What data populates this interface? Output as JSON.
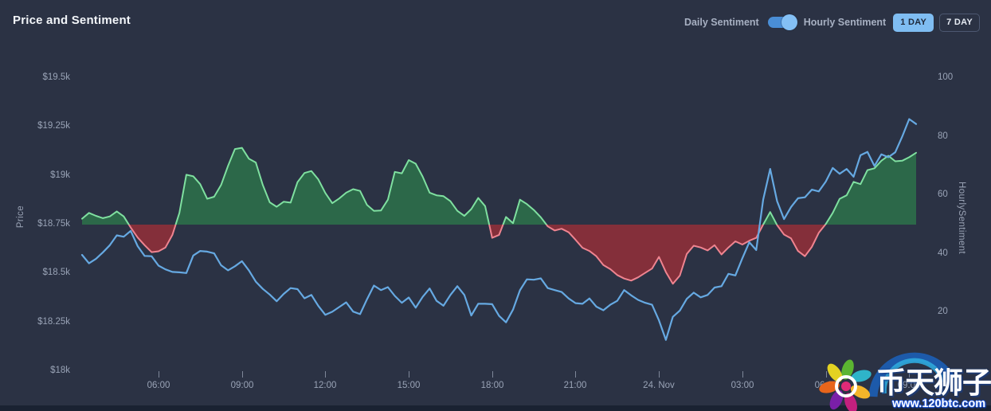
{
  "header": {
    "title": "Price and Sentiment"
  },
  "controls": {
    "legend_left": "Daily Sentiment",
    "legend_right": "Hourly Sentiment",
    "toggle_state": "hourly",
    "range_buttons": [
      {
        "label": "1 DAY",
        "active": true
      },
      {
        "label": "7 DAY",
        "active": false
      }
    ]
  },
  "colors": {
    "background": "#2b3244",
    "price_line": "#66a9e2",
    "sentiment_line_above": "#7fe0a0",
    "sentiment_line_below": "#ef8490",
    "sentiment_fill_above": "#2c6849",
    "sentiment_fill_below": "#842f3a",
    "axis_text": "#99a3b6",
    "active_button": "#7fbdf2"
  },
  "chart_data": {
    "type": "line+area",
    "title": "Price and Sentiment",
    "legend": [
      "Daily Sentiment",
      "Hourly Sentiment"
    ],
    "x_start_hour_offset": 0,
    "x_step_hours": 0.25,
    "x_total_hours": 30,
    "x_ticks": {
      "labels": [
        "06:00",
        "09:00",
        "12:00",
        "15:00",
        "18:00",
        "21:00",
        "24. Nov",
        "03:00",
        "06:00",
        "09:00"
      ],
      "hours_from_start": [
        2.75,
        5.75,
        8.75,
        11.75,
        14.75,
        17.75,
        20.75,
        23.75,
        26.75,
        29.75
      ]
    },
    "axis_titles": {
      "left": "Price",
      "right": "HourlySentiment"
    },
    "price": {
      "name": "Price",
      "axis": "left",
      "min": 18000,
      "max": 19500,
      "tick_labels": [
        "$18k",
        "$18.25k",
        "$18.5k",
        "$18.75k",
        "$19k",
        "$19.25k",
        "$19.5k"
      ],
      "values": [
        18595,
        18552,
        18575,
        18608,
        18645,
        18695,
        18688,
        18718,
        18640,
        18590,
        18588,
        18540,
        18521,
        18508,
        18506,
        18502,
        18592,
        18615,
        18612,
        18603,
        18542,
        18516,
        18537,
        18563,
        18516,
        18458,
        18421,
        18392,
        18358,
        18395,
        18425,
        18420,
        18373,
        18390,
        18334,
        18288,
        18304,
        18328,
        18352,
        18305,
        18292,
        18368,
        18438,
        18415,
        18430,
        18385,
        18350,
        18377,
        18325,
        18380,
        18423,
        18360,
        18335,
        18390,
        18435,
        18390,
        18285,
        18345,
        18345,
        18343,
        18283,
        18250,
        18315,
        18414,
        18470,
        18468,
        18475,
        18425,
        18415,
        18405,
        18372,
        18348,
        18345,
        18372,
        18330,
        18312,
        18340,
        18360,
        18415,
        18388,
        18365,
        18350,
        18340,
        18260,
        18160,
        18278,
        18310,
        18370,
        18402,
        18378,
        18390,
        18428,
        18435,
        18498,
        18490,
        18578,
        18660,
        18620,
        18877,
        19035,
        18870,
        18778,
        18840,
        18885,
        18890,
        18929,
        18920,
        18970,
        19040,
        19010,
        19035,
        18995,
        19105,
        19122,
        19050,
        19110,
        19095,
        19120,
        19200,
        19290,
        19265
      ]
    },
    "sentiment": {
      "name": "HourlySentiment",
      "axis": "right",
      "min": 0,
      "max": 100,
      "baseline": 50,
      "tick_labels": [
        "0",
        "20",
        "40",
        "60",
        "80",
        "100"
      ],
      "values": [
        52,
        54,
        53,
        52.2,
        52.8,
        54.5,
        52.8,
        49,
        45.6,
        43,
        40.6,
        40.9,
        42.2,
        46.5,
        54,
        67,
        66.5,
        63.8,
        58.8,
        59.5,
        63.5,
        70,
        75.8,
        76.2,
        72.5,
        71.2,
        63.5,
        57.6,
        56.1,
        57.8,
        57.5,
        64.5,
        67.6,
        68.3,
        65.4,
        60.8,
        57.3,
        58.9,
        60.9,
        62.1,
        61.5,
        56.7,
        54.7,
        54.8,
        58.5,
        68,
        67.5,
        72,
        70.8,
        66.4,
        60.9,
        60,
        59.7,
        58,
        54.7,
        53,
        55.3,
        59.1,
        56.3,
        45.5,
        46.5,
        52.6,
        50.5,
        58.5,
        57,
        55,
        52.5,
        49.4,
        48,
        48.6,
        47.4,
        44.8,
        42.1,
        41,
        39.2,
        36.2,
        34.8,
        32.8,
        31.6,
        30.9,
        32,
        33.5,
        35,
        39,
        33.8,
        29.8,
        32.6,
        40,
        42.8,
        42.2,
        41.2,
        43,
        39.8,
        42.2,
        44.3,
        43.2,
        44.5,
        45.5,
        50,
        54.3,
        49.8,
        46.6,
        45.3,
        41,
        39.2,
        42.4,
        47.2,
        50.2,
        54,
        58.8,
        60,
        64.6,
        63.8,
        68.6,
        69.2,
        71.8,
        73.5,
        71.6,
        71.8,
        73,
        74.5
      ]
    }
  },
  "watermark": {
    "text": "币天狮子",
    "url": "www.120btc.com"
  }
}
